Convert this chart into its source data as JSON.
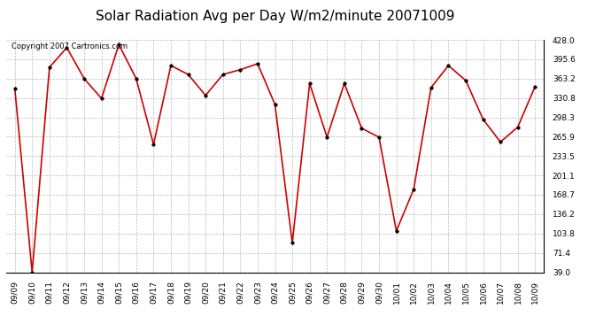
{
  "title": "Solar Radiation Avg per Day W/m2/minute 20071009",
  "copyright_text": "Copyright 2007 Cartronics.com",
  "x_labels": [
    "09/09",
    "09/10",
    "09/11",
    "09/12",
    "09/13",
    "09/14",
    "09/15",
    "09/16",
    "09/17",
    "09/18",
    "09/19",
    "09/20",
    "09/21",
    "09/22",
    "09/23",
    "09/24",
    "09/25",
    "09/26",
    "09/27",
    "09/28",
    "09/29",
    "09/30",
    "10/01",
    "10/02",
    "10/03",
    "10/04",
    "10/05",
    "10/06",
    "10/07",
    "10/08",
    "10/09"
  ],
  "y_values": [
    347,
    39,
    382,
    415,
    363,
    330,
    420,
    363,
    253,
    385,
    370,
    335,
    370,
    378,
    388,
    320,
    88,
    355,
    265,
    355,
    280,
    265,
    108,
    178,
    348,
    385,
    360,
    295,
    257,
    282,
    350
  ],
  "y_ticks": [
    39.0,
    71.4,
    103.8,
    136.2,
    168.7,
    201.1,
    233.5,
    265.9,
    298.3,
    330.8,
    363.2,
    395.6,
    428.0
  ],
  "y_min": 39.0,
  "y_max": 428.0,
  "line_color": "#cc0000",
  "marker": "o",
  "marker_size": 2.5,
  "bg_color": "#ffffff",
  "grid_color": "#aaaaaa",
  "grid_style": "--",
  "title_fontsize": 11,
  "tick_fontsize": 6.5,
  "copyright_fontsize": 6
}
